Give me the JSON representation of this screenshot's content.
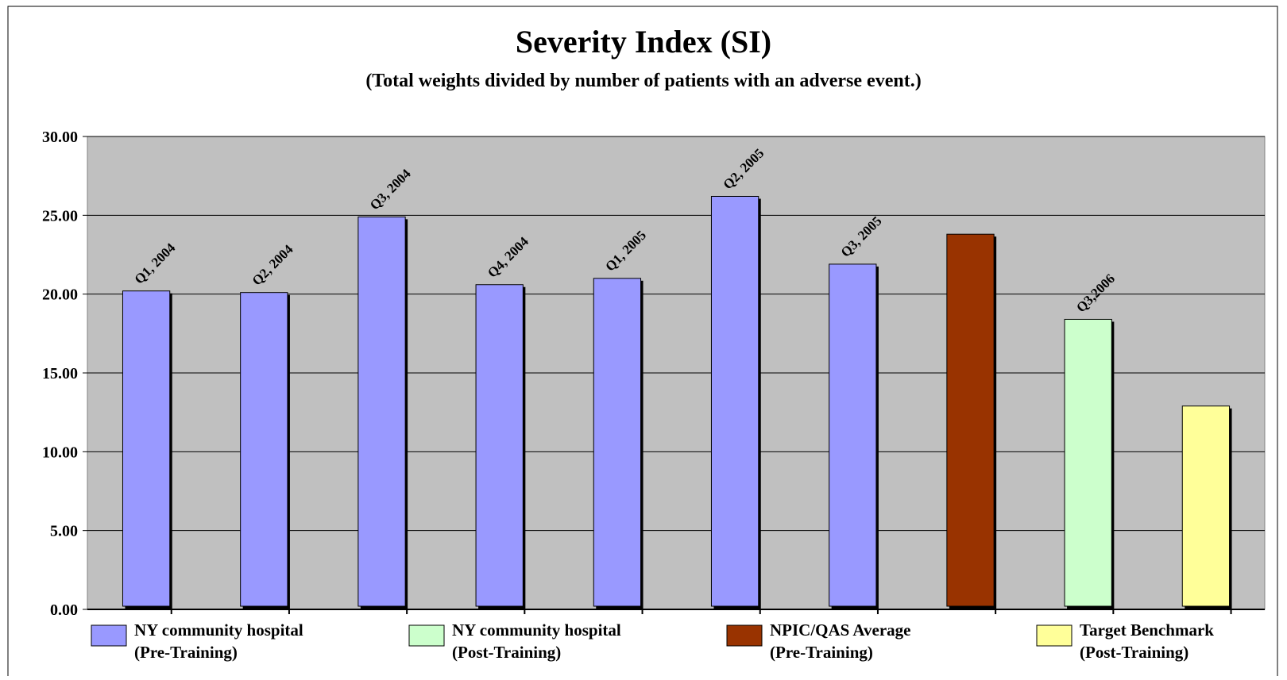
{
  "chart_data": {
    "type": "bar",
    "title": "Severity Index (SI)",
    "subtitle": "(Total weights divided by number of patients with an adverse event.)",
    "ylim": [
      0,
      30
    ],
    "yticks": [
      "0.00",
      "5.00",
      "10.00",
      "15.00",
      "20.00",
      "25.00",
      "30.00"
    ],
    "grid": true,
    "plot_background": "#c0c0c0",
    "bars": [
      {
        "label": "Q1, 2004",
        "value": 20.2,
        "group": 0
      },
      {
        "label": "Q2, 2004",
        "value": 20.1,
        "group": 0
      },
      {
        "label": "Q3, 2004",
        "value": 24.9,
        "group": 0
      },
      {
        "label": "Q4, 2004",
        "value": 20.6,
        "group": 0
      },
      {
        "label": "Q1, 2005",
        "value": 21.0,
        "group": 0
      },
      {
        "label": "Q2, 2005",
        "value": 26.2,
        "group": 0
      },
      {
        "label": "Q3, 2005",
        "value": 21.9,
        "group": 0
      },
      {
        "label": "",
        "value": 23.8,
        "group": 2
      },
      {
        "label": "Q3,2006",
        "value": 18.4,
        "group": 1
      },
      {
        "label": "",
        "value": 12.9,
        "group": 3
      }
    ],
    "legend": [
      {
        "line1": "NY community hospital",
        "line2": "(Pre-Training)",
        "color": "#9999ff"
      },
      {
        "line1": "NY community hospital",
        "line2": "(Post-Training)",
        "color": "#ccffcc"
      },
      {
        "line1": "NPIC/QAS Average",
        "line2": "(Pre-Training)",
        "color": "#993300"
      },
      {
        "line1": "Target Benchmark",
        "line2": "(Post-Training)",
        "color": "#ffff99"
      }
    ]
  }
}
